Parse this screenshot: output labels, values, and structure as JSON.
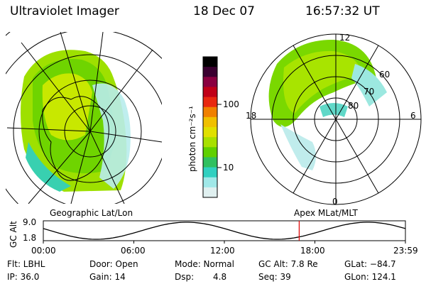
{
  "header": {
    "instrument": "Ultraviolet Imager",
    "date": "18 Dec 07",
    "time": "16:57:32 UT"
  },
  "colorbar": {
    "unit_label": "photon cm⁻²s⁻¹",
    "ticks": [
      "100",
      "10"
    ],
    "colors": [
      "#000000",
      "#3a0030",
      "#8a0040",
      "#c00018",
      "#e82810",
      "#f08000",
      "#f0c000",
      "#e0e000",
      "#a8e000",
      "#60d000",
      "#30c060",
      "#30d0c0",
      "#a0e8e8",
      "#e0f0f0"
    ]
  },
  "geo_panel": {
    "label": "Geographic Lat/Lon"
  },
  "mag_panel": {
    "label": "Apex MLat/MLT",
    "mlt_labels": {
      "top": "12",
      "left": "18",
      "right": "6",
      "bottom": "0"
    },
    "lat_labels": [
      "60",
      "70",
      "80"
    ]
  },
  "altitude_plot": {
    "ylabel": "GC Alt",
    "yticks": [
      "9.0",
      "1.8"
    ],
    "xticks": [
      "00:00",
      "06:00",
      "12:00",
      "18:00",
      "23:59"
    ],
    "current_marker_hour": 16.96
  },
  "info": {
    "filter": "Flt: LBHL",
    "ip": "IP: 36.0",
    "door": "Door: Open",
    "gain": "Gain: 14",
    "mode": "Mode: Normal",
    "dsp_label": "Dsp:",
    "dsp_value": "4.8",
    "gc_alt": "GC Alt: 7.8 Re",
    "seq": "Seq: 39",
    "glat": "GLat: −84.7",
    "glon": "GLon: 124.1"
  }
}
